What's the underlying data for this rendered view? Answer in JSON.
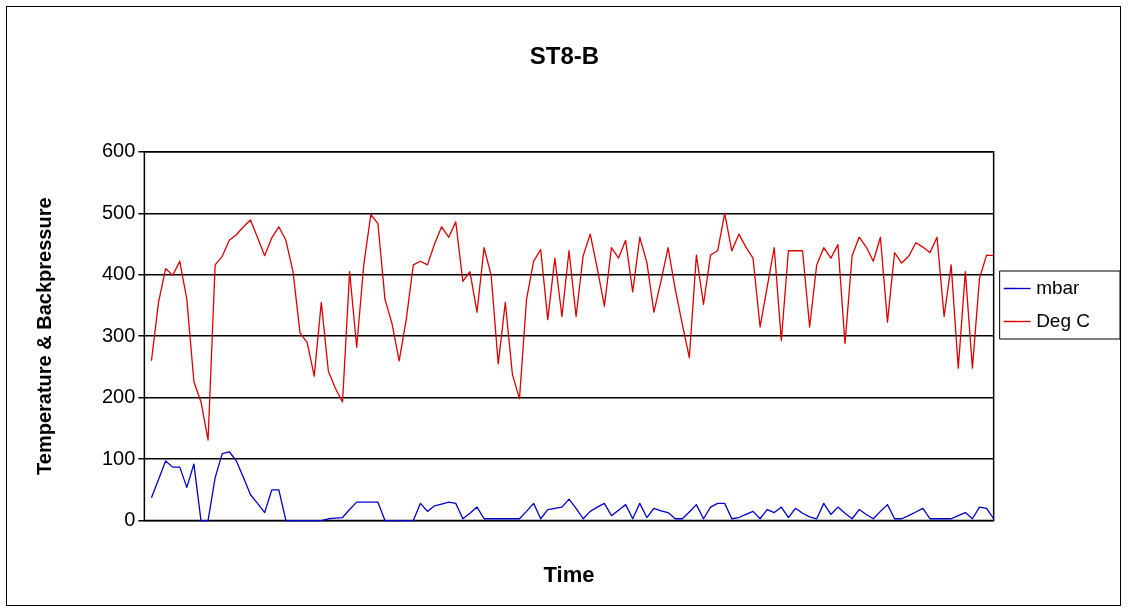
{
  "chart_data": {
    "type": "line",
    "title": "ST8-B",
    "xlabel": "Time",
    "ylabel": "Temperature & Backpressure",
    "categories": [
      null,
      null,
      null,
      null,
      null,
      null,
      null,
      null,
      null,
      null,
      null,
      null,
      null,
      null,
      null,
      null,
      null,
      null,
      null,
      null,
      null,
      null,
      null,
      null,
      null,
      null,
      null,
      null,
      null,
      null,
      null,
      null,
      null,
      null,
      null,
      null,
      null,
      null,
      null,
      null,
      null,
      null,
      null,
      null,
      null,
      null,
      null,
      null,
      null,
      null,
      null,
      null,
      null,
      null,
      null,
      null,
      null,
      null,
      null,
      null,
      null,
      null,
      null,
      null,
      null,
      null,
      null,
      null,
      null,
      null,
      null,
      null,
      null,
      null,
      null,
      null,
      null,
      null,
      null,
      null,
      null,
      null,
      null,
      null,
      null,
      null,
      null,
      null,
      null,
      null,
      null,
      null,
      null,
      null,
      null,
      null,
      null,
      null,
      null,
      null,
      null,
      null,
      null,
      null,
      null,
      null,
      null,
      null,
      null,
      null,
      null,
      null,
      null,
      null,
      null,
      null,
      null,
      null,
      null,
      null,
      null
    ],
    "ylim": [
      0,
      600
    ],
    "yticks": [
      0,
      100,
      200,
      300,
      400,
      500,
      600
    ],
    "tick_labels": "y",
    "grid": "y",
    "legend": "right",
    "marker": "none",
    "line_style": "solid",
    "series": [
      {
        "name": "mbar",
        "color": "#0000cc",
        "values": [
          null,
          37,
          67,
          97,
          87,
          87,
          54,
          92,
          0,
          0,
          70,
          109,
          112,
          97,
          70,
          42,
          28,
          13,
          50,
          50,
          0,
          0,
          0,
          0,
          0,
          0,
          3,
          4,
          5,
          18,
          30,
          30,
          30,
          30,
          0,
          0,
          0,
          0,
          0,
          28,
          15,
          24,
          27,
          30,
          28,
          3,
          12,
          22,
          3,
          3,
          3,
          3,
          3,
          3,
          15,
          28,
          3,
          18,
          20,
          22,
          35,
          20,
          3,
          15,
          22,
          28,
          8,
          17,
          26,
          3,
          28,
          5,
          20,
          16,
          13,
          3,
          3,
          14,
          26,
          3,
          22,
          28,
          28,
          3,
          5,
          10,
          15,
          3,
          18,
          13,
          22,
          5,
          20,
          12,
          6,
          3,
          28,
          10,
          22,
          12,
          3,
          18,
          10,
          3,
          15,
          26,
          3,
          3,
          8,
          14,
          20,
          3,
          3,
          3,
          3,
          8,
          13,
          3,
          22,
          20,
          3
        ]
      },
      {
        "name": "Deg C",
        "color": "#dd0000",
        "values": [
          null,
          260,
          355,
          410,
          399,
          422,
          360,
          226,
          193,
          131,
          416,
          430,
          456,
          465,
          478,
          489,
          460,
          431,
          460,
          478,
          456,
          405,
          305,
          290,
          235,
          355,
          243,
          215,
          193,
          405,
          282,
          416,
          498,
          483,
          360,
          320,
          260,
          327,
          416,
          422,
          416,
          450,
          478,
          461,
          486,
          389,
          405,
          339,
          444,
          399,
          255,
          355,
          238,
          198,
          360,
          422,
          441,
          327,
          427,
          332,
          439,
          332,
          431,
          466,
          410,
          349,
          444,
          427,
          456,
          372,
          461,
          420,
          339,
          390,
          444,
          377,
          320,
          265,
          432,
          352,
          432,
          439,
          500,
          439,
          466,
          445,
          427,
          315,
          380,
          444,
          293,
          439,
          439,
          439,
          315,
          416,
          444,
          427,
          449,
          288,
          431,
          461,
          445,
          422,
          461,
          323,
          436,
          419,
          430,
          452,
          445,
          436,
          461,
          332,
          416,
          248,
          405,
          248,
          394,
          432,
          431
        ]
      }
    ]
  }
}
